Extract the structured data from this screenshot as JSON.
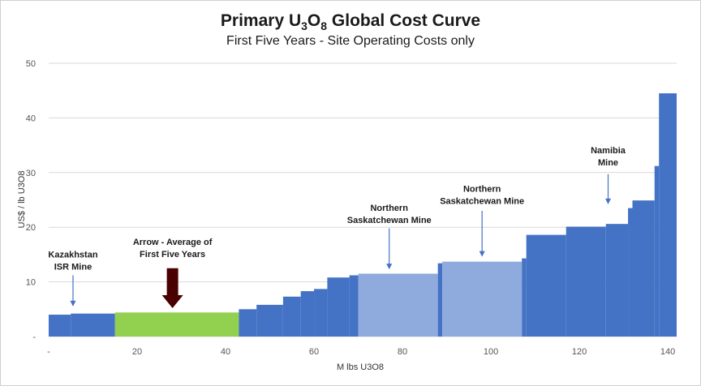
{
  "chart_data": {
    "type": "bar",
    "title_main": "Primary U",
    "title_sub3": "3",
    "title_o": "O",
    "title_sub8": "8",
    "title_rest": " Global Cost Curve",
    "subtitle": "First Five Years - Site Operating Costs only",
    "xlabel": "M lbs U3O8",
    "ylabel": "US$ / lb U3O8",
    "xlim": [
      0,
      142
    ],
    "ylim": [
      0,
      50
    ],
    "x_ticks": [
      {
        "value": 0,
        "label": "-"
      },
      {
        "value": 20,
        "label": "20"
      },
      {
        "value": 40,
        "label": "40"
      },
      {
        "value": 60,
        "label": "60"
      },
      {
        "value": 80,
        "label": "80"
      },
      {
        "value": 100,
        "label": "100"
      },
      {
        "value": 120,
        "label": "120"
      },
      {
        "value": 140,
        "label": "140"
      }
    ],
    "y_ticks": [
      {
        "value": 0,
        "label": "-"
      },
      {
        "value": 10,
        "label": "10"
      },
      {
        "value": 20,
        "label": "20"
      },
      {
        "value": 30,
        "label": "30"
      },
      {
        "value": 40,
        "label": "40"
      },
      {
        "value": 50,
        "label": "50"
      }
    ],
    "gridlines": true,
    "colors": {
      "base": "#4472c4",
      "highlight_light": "#8faadc",
      "highlight_green": "#92d050",
      "arrow_dark": "#4a0000",
      "arrow_small": "#4472c4",
      "grid": "#d9d9d9"
    },
    "bars": [
      {
        "x0": 0,
        "x1": 5,
        "y": 4.0,
        "style": "base"
      },
      {
        "x0": 5,
        "x1": 15,
        "y": 4.2,
        "style": "base"
      },
      {
        "x0": 15,
        "x1": 43,
        "y": 4.4,
        "style": "highlight_green"
      },
      {
        "x0": 43,
        "x1": 47,
        "y": 5.0,
        "style": "base"
      },
      {
        "x0": 47,
        "x1": 53,
        "y": 5.8,
        "style": "base"
      },
      {
        "x0": 53,
        "x1": 57,
        "y": 7.3,
        "style": "base"
      },
      {
        "x0": 57,
        "x1": 60,
        "y": 8.3,
        "style": "base"
      },
      {
        "x0": 60,
        "x1": 63,
        "y": 8.7,
        "style": "base"
      },
      {
        "x0": 63,
        "x1": 68,
        "y": 10.8,
        "style": "base"
      },
      {
        "x0": 68,
        "x1": 70,
        "y": 11.2,
        "style": "base"
      },
      {
        "x0": 70,
        "x1": 88,
        "y": 11.5,
        "style": "highlight_light"
      },
      {
        "x0": 88,
        "x1": 89,
        "y": 13.4,
        "style": "base"
      },
      {
        "x0": 89,
        "x1": 107,
        "y": 13.7,
        "style": "highlight_light"
      },
      {
        "x0": 107,
        "x1": 108,
        "y": 14.3,
        "style": "base"
      },
      {
        "x0": 108,
        "x1": 117,
        "y": 18.6,
        "style": "base"
      },
      {
        "x0": 117,
        "x1": 126,
        "y": 20.1,
        "style": "base"
      },
      {
        "x0": 126,
        "x1": 131,
        "y": 20.6,
        "style": "base"
      },
      {
        "x0": 131,
        "x1": 132,
        "y": 23.5,
        "style": "base"
      },
      {
        "x0": 132,
        "x1": 137,
        "y": 24.9,
        "style": "base"
      },
      {
        "x0": 137,
        "x1": 138,
        "y": 31.2,
        "style": "base"
      },
      {
        "x0": 138,
        "x1": 142,
        "y": 44.5,
        "style": "base"
      }
    ],
    "annotations": [
      {
        "lines": [
          "Kazakhstan",
          "ISR Mine"
        ],
        "x": 5.5,
        "y": 14.5,
        "arrow_from": 11.2,
        "arrow_to": 5.5,
        "style": "small"
      },
      {
        "lines": [
          "Arrow - Average of",
          "First Five Years"
        ],
        "x": 28,
        "y": 16.8,
        "arrow_from": 12.5,
        "arrow_to": 5.2,
        "style": "big"
      },
      {
        "lines": [
          "Northern",
          "Saskatchewan  Mine"
        ],
        "x": 77,
        "y": 23.0,
        "arrow_from": 19.8,
        "arrow_to": 12.3,
        "style": "small"
      },
      {
        "lines": [
          "Northern",
          "Saskatchewan  Mine"
        ],
        "x": 98,
        "y": 26.5,
        "arrow_from": 23.0,
        "arrow_to": 14.6,
        "style": "small"
      },
      {
        "lines": [
          "Namibia",
          "Mine"
        ],
        "x": 126.5,
        "y": 33.5,
        "arrow_from": 29.7,
        "arrow_to": 24.2,
        "style": "small"
      }
    ]
  }
}
